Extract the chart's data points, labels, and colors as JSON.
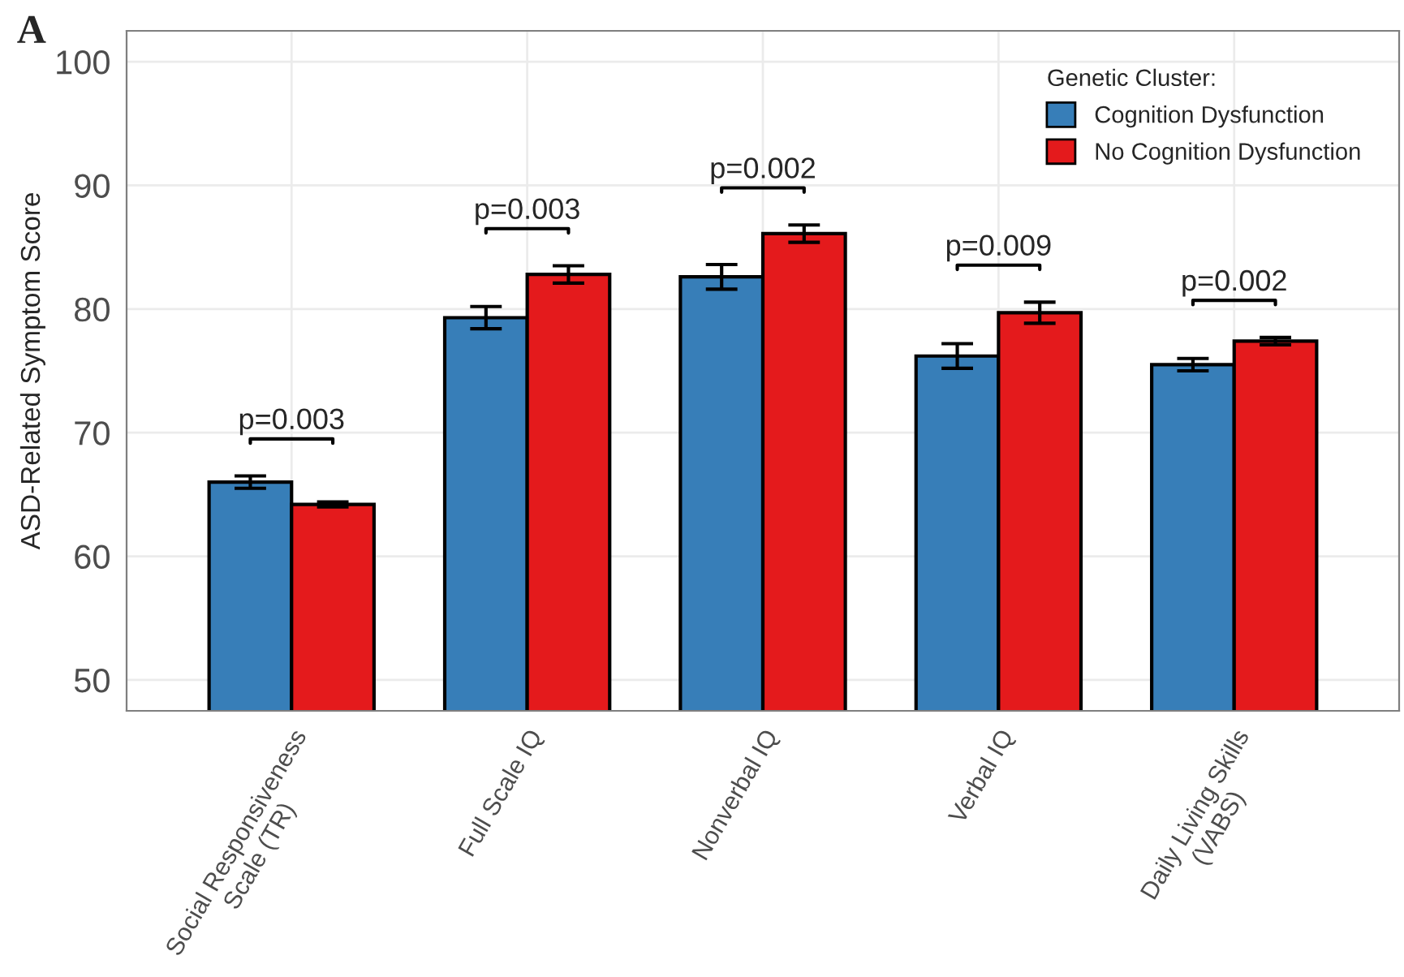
{
  "chart_data": {
    "type": "bar",
    "ylabel": "ASD-Related Symptom Score",
    "legend_title": "Genetic Cluster:",
    "categories": [
      "Social Responsiveness\nScale (TR)",
      "Full Scale IQ",
      "Nonverbal IQ",
      "Verbal IQ",
      "Daily Living Skills\n(VABS)"
    ],
    "series": [
      {
        "name": "Cognition Dysfunction",
        "color": "#377eb8",
        "values": [
          66.0,
          79.3,
          82.6,
          76.2,
          75.5
        ],
        "errors": [
          0.5,
          0.9,
          1.0,
          1.0,
          0.5
        ]
      },
      {
        "name": "No Cognition Dysfunction",
        "color": "#e41a1c",
        "values": [
          64.2,
          82.8,
          86.1,
          79.7,
          77.4
        ],
        "errors": [
          0.2,
          0.7,
          0.7,
          0.85,
          0.3
        ]
      }
    ],
    "ylim": [
      47.5,
      102.5
    ],
    "yticks": [
      50,
      60,
      70,
      80,
      90,
      100
    ],
    "grid": true,
    "legend": "top right",
    "annotations": [
      "A",
      "p=0.003",
      "p=0.003",
      "p=0.002",
      "p=0.009",
      "p=0.002"
    ]
  }
}
